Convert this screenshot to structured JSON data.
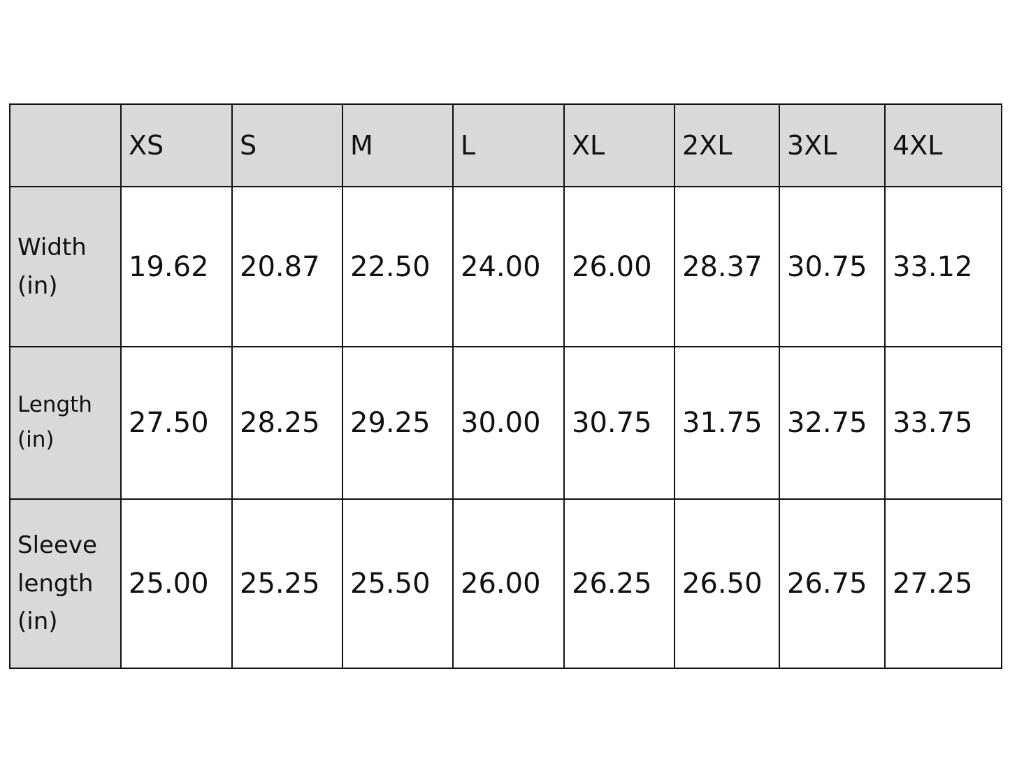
{
  "table": {
    "columns": [
      "",
      "XS",
      "S",
      "M",
      "L",
      "XL",
      "2XL",
      "3XL",
      "4XL"
    ],
    "rows": [
      {
        "label": "Width (in)",
        "values": [
          "19.62",
          "20.87",
          "22.50",
          "24.00",
          "26.00",
          "28.37",
          "30.75",
          "33.12"
        ]
      },
      {
        "label": "Length (in)",
        "values": [
          "27.50",
          "28.25",
          "29.25",
          "30.00",
          "30.75",
          "31.75",
          "32.75",
          "33.75"
        ]
      },
      {
        "label": "Sleeve length (in)",
        "values": [
          "25.00",
          "25.25",
          "25.50",
          "26.00",
          "26.25",
          "26.50",
          "26.75",
          "27.25"
        ]
      }
    ]
  },
  "colors": {
    "header_bg": "#d9d9d9",
    "border": "#111111",
    "cell_bg": "#ffffff"
  }
}
